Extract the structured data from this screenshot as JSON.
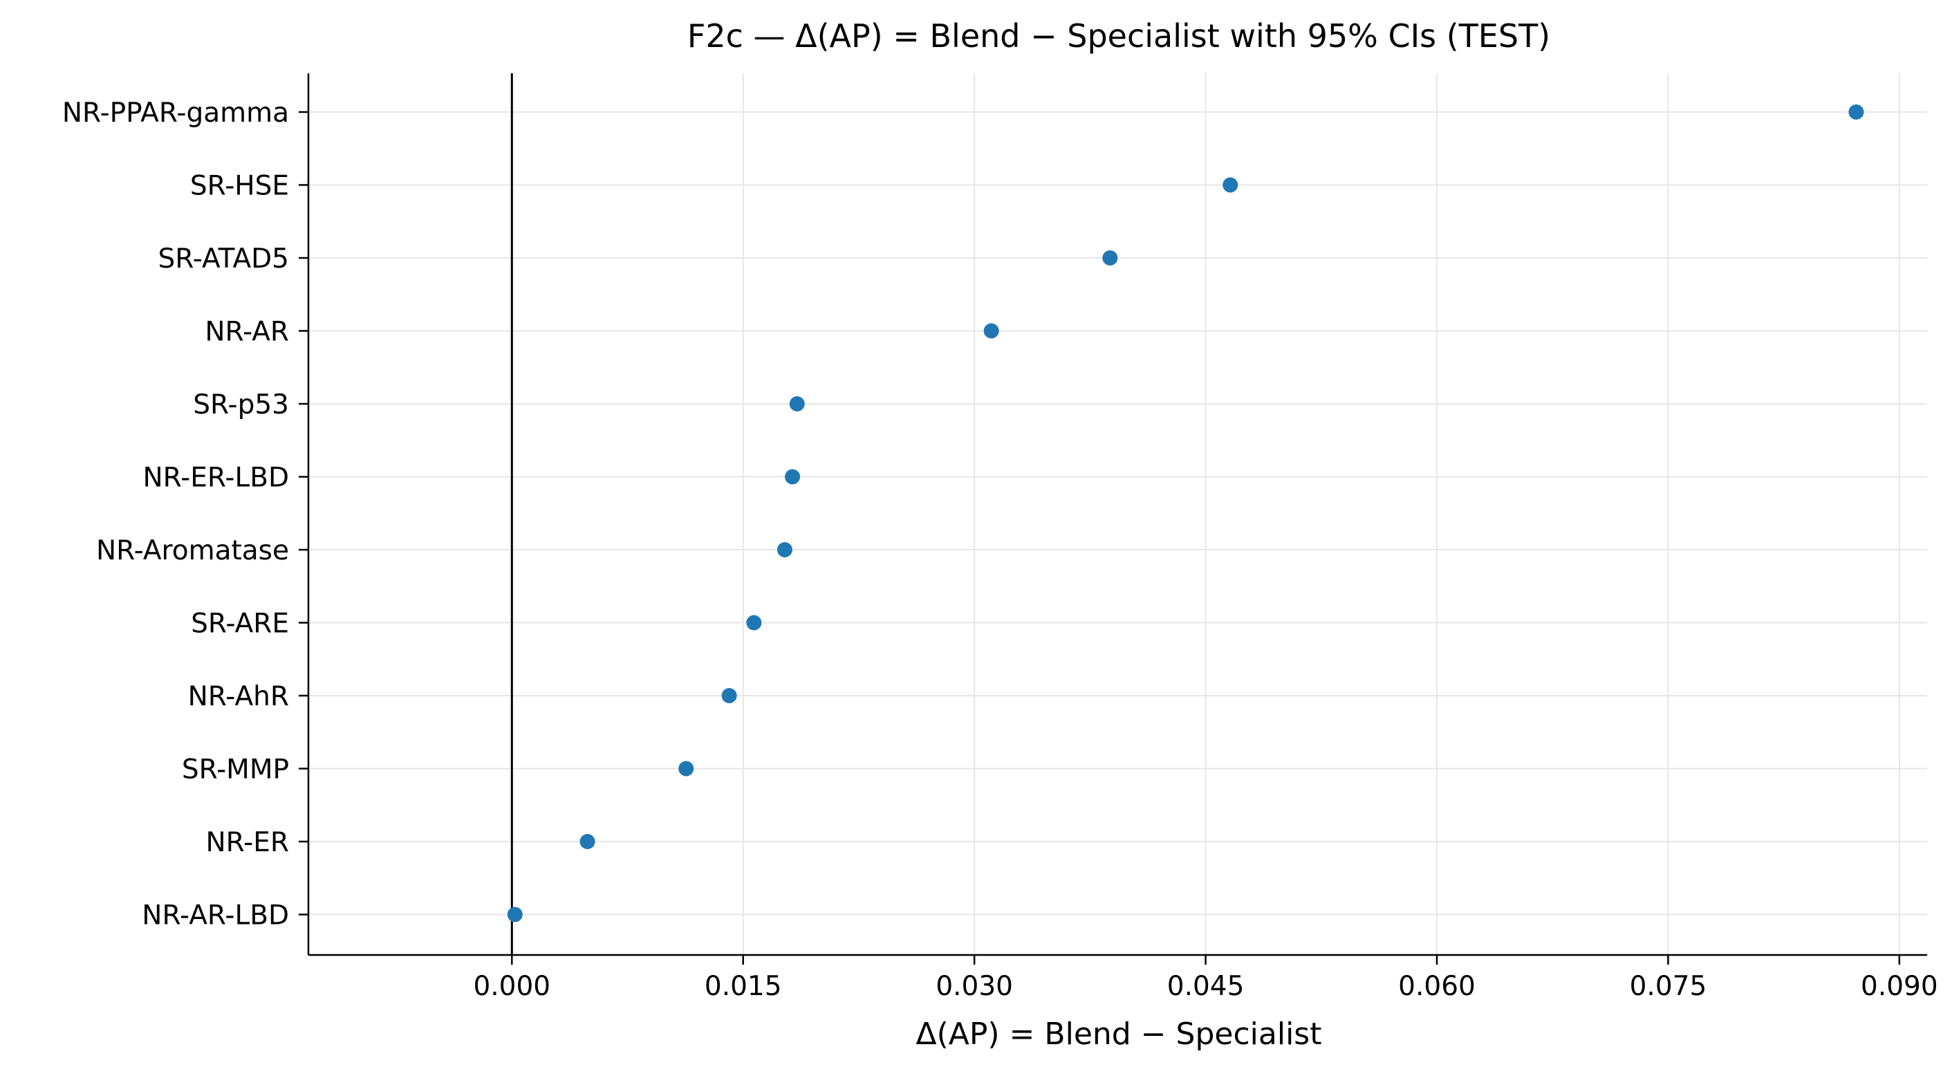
{
  "chart_data": {
    "type": "scatter",
    "title": "F2c — Δ(AP) = Blend − Specialist with 95% CIs (TEST)",
    "xlabel": "Δ(AP) = Blend − Specialist",
    "ylabel": "",
    "xlim": [
      -0.0132,
      0.0918
    ],
    "x_ticks": [
      0.0,
      0.015,
      0.03,
      0.045,
      0.06,
      0.075,
      0.09
    ],
    "x_tick_labels": [
      "0.000",
      "0.015",
      "0.030",
      "0.045",
      "0.060",
      "0.075",
      "0.090"
    ],
    "reference_line_x": 0.0,
    "grid": true,
    "legend": "none",
    "categories": [
      "NR-PPAR-gamma",
      "SR-HSE",
      "SR-ATAD5",
      "NR-AR",
      "SR-p53",
      "NR-ER-LBD",
      "NR-Aromatase",
      "SR-ARE",
      "NR-AhR",
      "SR-MMP",
      "NR-ER",
      "NR-AR-LBD"
    ],
    "values": [
      0.0872,
      0.0466,
      0.0388,
      0.0311,
      0.0185,
      0.0182,
      0.0177,
      0.0157,
      0.0141,
      0.0113,
      0.0049,
      0.0002
    ],
    "colors": {
      "marker": "#1f77b4",
      "grid": "#e6e6e6",
      "axis": "#000000"
    }
  }
}
